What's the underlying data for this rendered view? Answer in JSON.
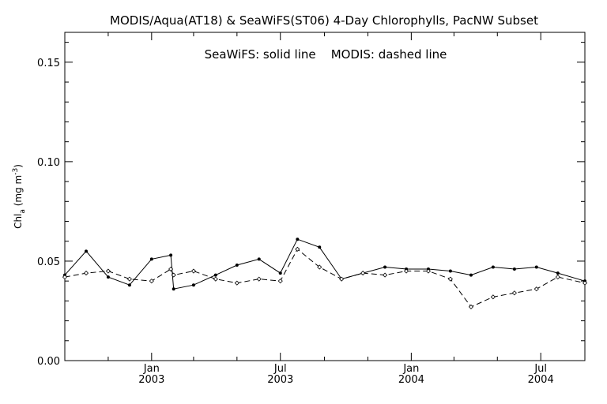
{
  "chart_data": {
    "type": "line",
    "title": "MODIS/Aqua(AT18) & SeaWiFS(ST06) 4-Day Chlorophylls, PacNW Subset",
    "legend_text": "SeaWiFS: solid line    MODIS: dashed line",
    "ylabel": "Chl",
    "ylabel_sub": "a",
    "ylabel_unit": "(mg m",
    "ylabel_sup": "-3",
    "ylabel_close": ")",
    "ylim": [
      0.0,
      0.165
    ],
    "y_ticks": [
      {
        "value": 0.0,
        "label": "0.00"
      },
      {
        "value": 0.05,
        "label": "0.05"
      },
      {
        "value": 0.1,
        "label": "0.10"
      },
      {
        "value": 0.15,
        "label": "0.15"
      }
    ],
    "y_minor_step": 0.01,
    "xlim": [
      "2002-09-01",
      "2004-09-01"
    ],
    "x_ticks": [
      {
        "date": "2003-01-01",
        "month": "Jan",
        "year": "2003"
      },
      {
        "date": "2003-07-01",
        "month": "Jul",
        "year": "2003"
      },
      {
        "date": "2004-01-01",
        "month": "Jan",
        "year": "2004"
      },
      {
        "date": "2004-07-01",
        "month": "Jul",
        "year": "2004"
      }
    ],
    "x_minor_months": [
      "2002-11-01",
      "2003-03-01",
      "2003-05-01",
      "2003-09-01",
      "2003-11-01",
      "2004-03-01",
      "2004-05-01"
    ],
    "series": [
      {
        "name": "SeaWiFS",
        "style": "solid",
        "points": [
          [
            "2002-09-01",
            0.043
          ],
          [
            "2002-10-01",
            0.055
          ],
          [
            "2002-11-01",
            0.042
          ],
          [
            "2002-12-01",
            0.038
          ],
          [
            "2003-01-01",
            0.051
          ],
          [
            "2003-01-28",
            0.053
          ],
          [
            "2003-02-01",
            0.036
          ],
          [
            "2003-03-01",
            0.038
          ],
          [
            "2003-04-01",
            0.043
          ],
          [
            "2003-05-01",
            0.048
          ],
          [
            "2003-06-01",
            0.051
          ],
          [
            "2003-07-01",
            0.044
          ],
          [
            "2003-07-25",
            0.061
          ],
          [
            "2003-08-25",
            0.057
          ],
          [
            "2003-09-25",
            0.041
          ],
          [
            "2003-10-25",
            0.044
          ],
          [
            "2003-11-25",
            0.047
          ],
          [
            "2003-12-25",
            0.046
          ],
          [
            "2004-01-25",
            0.046
          ],
          [
            "2004-02-25",
            0.045
          ],
          [
            "2004-03-25",
            0.043
          ],
          [
            "2004-04-25",
            0.047
          ],
          [
            "2004-05-25",
            0.046
          ],
          [
            "2004-06-25",
            0.047
          ],
          [
            "2004-07-25",
            0.044
          ],
          [
            "2004-09-01",
            0.04
          ]
        ]
      },
      {
        "name": "MODIS",
        "style": "dashed",
        "points": [
          [
            "2002-09-01",
            0.042
          ],
          [
            "2002-10-01",
            0.044
          ],
          [
            "2002-11-01",
            0.045
          ],
          [
            "2002-12-01",
            0.041
          ],
          [
            "2003-01-01",
            0.04
          ],
          [
            "2003-01-28",
            0.046
          ],
          [
            "2003-02-01",
            0.043
          ],
          [
            "2003-03-01",
            0.045
          ],
          [
            "2003-04-01",
            0.041
          ],
          [
            "2003-05-01",
            0.039
          ],
          [
            "2003-06-01",
            0.041
          ],
          [
            "2003-07-01",
            0.04
          ],
          [
            "2003-07-25",
            0.056
          ],
          [
            "2003-08-25",
            0.047
          ],
          [
            "2003-09-25",
            0.041
          ],
          [
            "2003-10-25",
            0.044
          ],
          [
            "2003-11-25",
            0.043
          ],
          [
            "2003-12-25",
            0.045
          ],
          [
            "2004-01-25",
            0.045
          ],
          [
            "2004-02-25",
            0.041
          ],
          [
            "2004-03-25",
            0.027
          ],
          [
            "2004-04-25",
            0.032
          ],
          [
            "2004-05-25",
            0.034
          ],
          [
            "2004-06-25",
            0.036
          ],
          [
            "2004-07-25",
            0.042
          ],
          [
            "2004-09-01",
            0.039
          ]
        ]
      }
    ],
    "grid": false,
    "colors": {
      "background": "#ffffff",
      "ink": "#000000"
    }
  }
}
